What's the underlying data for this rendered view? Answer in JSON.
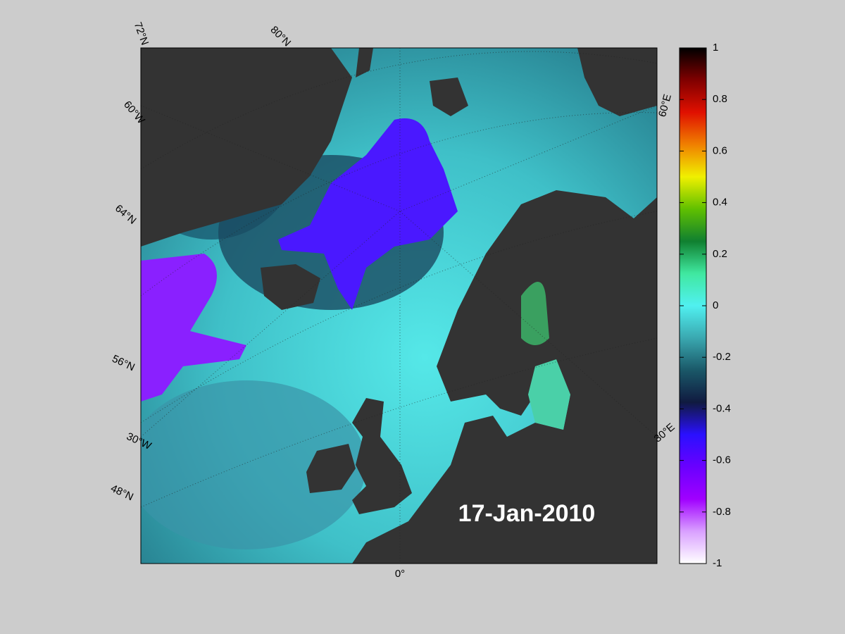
{
  "map": {
    "graticule_labels": [
      "72°N",
      "80°N",
      "60°W",
      "64°N",
      "56°N",
      "30°W",
      "48°N",
      "0°",
      "60°E",
      "30°E"
    ],
    "date": "17-Jan-2010",
    "colorbar": {
      "clim": [
        -1,
        1
      ],
      "ticks": [
        1,
        0.8,
        0.6,
        0.4,
        0.2,
        0,
        -0.2,
        -0.4,
        -0.6,
        -0.8,
        -1
      ],
      "colormap": [
        "#ffffff",
        "#d9a0ff",
        "#a000ff",
        "#6a00ff",
        "#2a10ff",
        "#101a40",
        "#1a5868",
        "#3aa8b0",
        "#50f0f0",
        "#40e8a0",
        "#108030",
        "#60c000",
        "#f0f000",
        "#f08000",
        "#e01000",
        "#800000",
        "#000000"
      ]
    }
  }
}
